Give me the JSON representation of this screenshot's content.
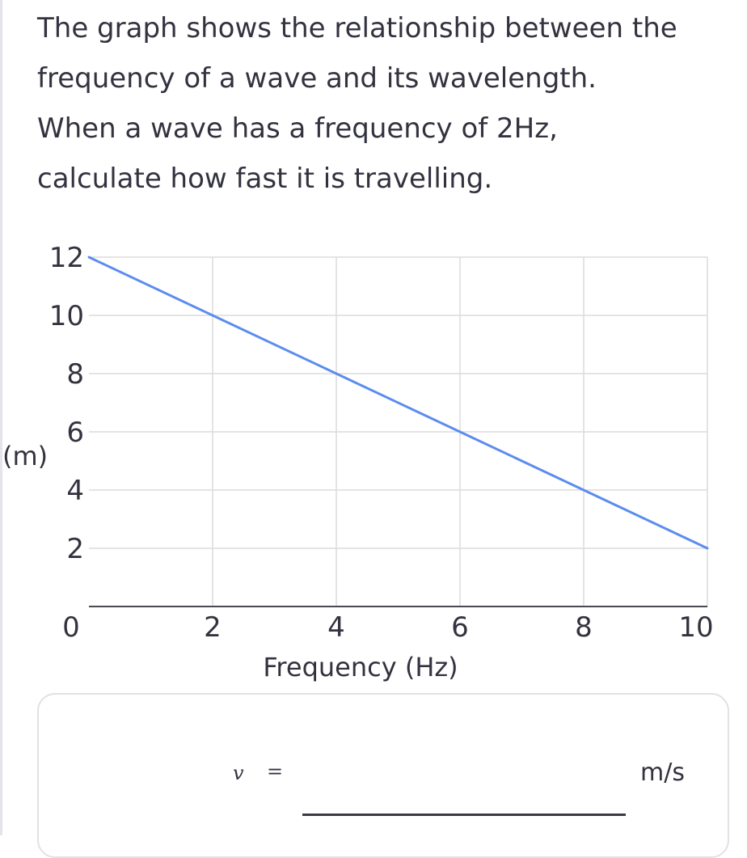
{
  "question": {
    "lines": [
      "The graph shows the relationship between the",
      "frequency of a wave and its wavelength.",
      "When a wave has a frequency of 2Hz,",
      "calculate how fast it is travelling."
    ]
  },
  "chart_data": {
    "type": "line",
    "title": "",
    "xlabel": "Frequency (Hz)",
    "ylabel": "(m)",
    "xlim": [
      0,
      10
    ],
    "ylim": [
      0,
      12
    ],
    "x_ticks": [
      "0",
      "2",
      "4",
      "6",
      "8",
      "10"
    ],
    "y_ticks": [
      "2",
      "4",
      "6",
      "8",
      "10",
      "12"
    ],
    "grid": true,
    "line_color": "#5b8def",
    "series": [
      {
        "x": [
          0,
          2,
          4,
          6,
          8,
          10
        ],
        "y": [
          12,
          10,
          8,
          6,
          4,
          2
        ]
      }
    ]
  },
  "answer": {
    "variable": "v",
    "equals": "=",
    "value": "",
    "unit": "m/s"
  }
}
